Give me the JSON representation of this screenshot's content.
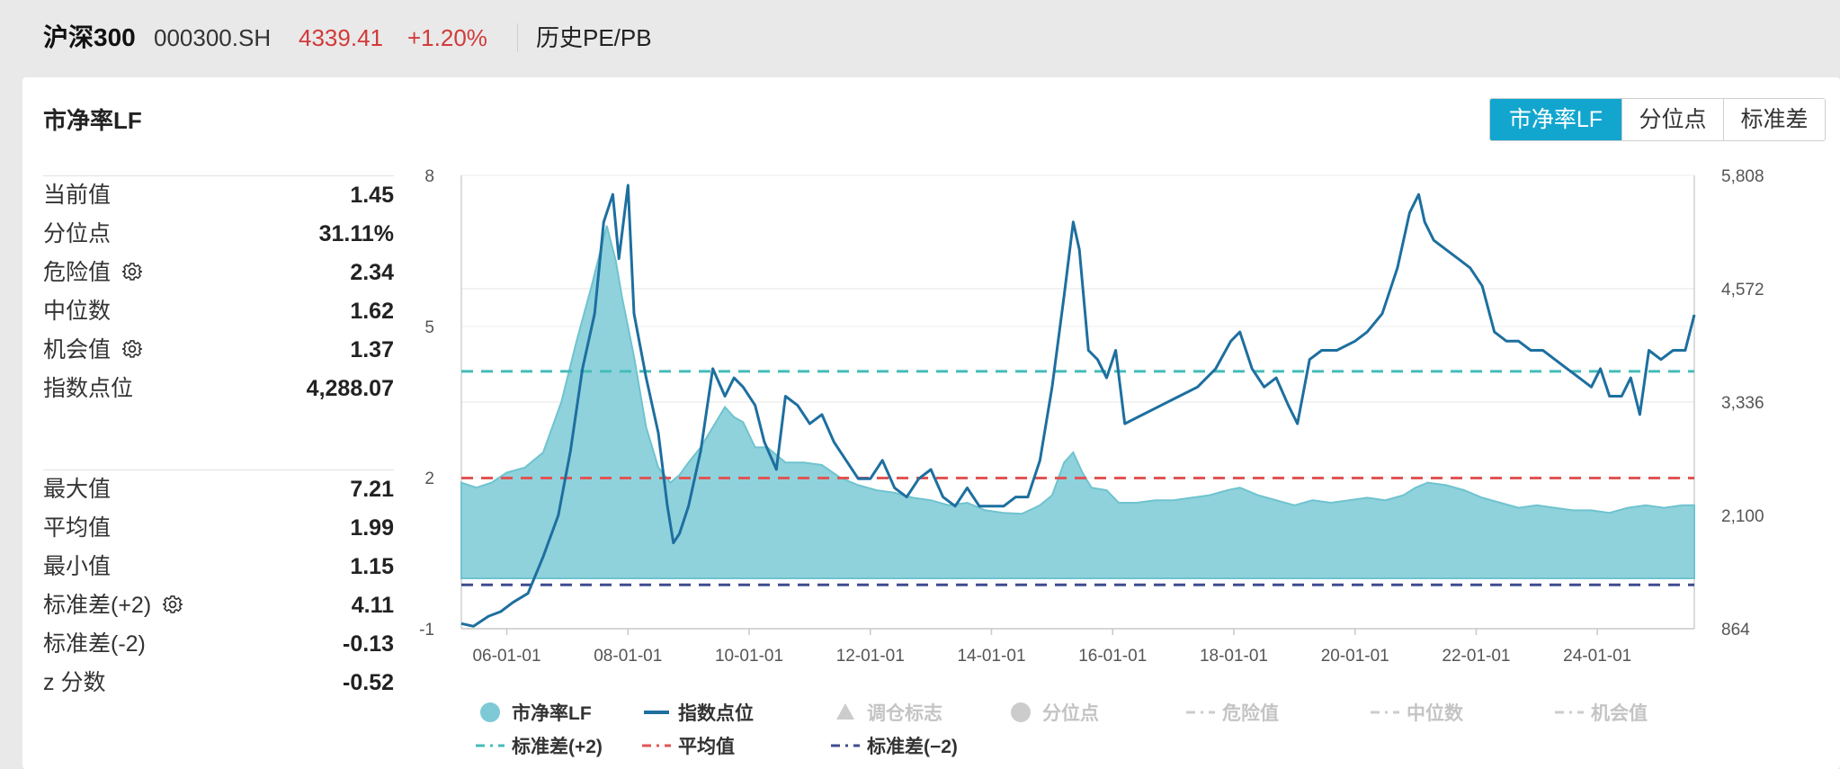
{
  "header": {
    "name": "沪深300",
    "code": "000300.SH",
    "price": "4339.41",
    "change": "+1.20%",
    "tab": "历史PE/PB"
  },
  "panel": {
    "title": "市净率LF",
    "segments": [
      {
        "label": "市净率LF",
        "active": true
      },
      {
        "label": "分位点",
        "active": false
      },
      {
        "label": "标准差",
        "active": false
      }
    ],
    "accent": "#12a6cf"
  },
  "stats_top": [
    {
      "label": "当前值",
      "value": "1.45",
      "gear": false
    },
    {
      "label": "分位点",
      "value": "31.11%",
      "gear": false
    },
    {
      "label": "危险值",
      "value": "2.34",
      "gear": true
    },
    {
      "label": "中位数",
      "value": "1.62",
      "gear": false
    },
    {
      "label": "机会值",
      "value": "1.37",
      "gear": true
    },
    {
      "label": "指数点位",
      "value": "4,288.07",
      "gear": false
    }
  ],
  "stats_bottom": [
    {
      "label": "最大值",
      "value": "7.21",
      "gear": false
    },
    {
      "label": "平均值",
      "value": "1.99",
      "gear": false
    },
    {
      "label": "最小值",
      "value": "1.15",
      "gear": false
    },
    {
      "label": "标准差(+2)",
      "value": "4.11",
      "gear": true
    },
    {
      "label": "标准差(-2)",
      "value": "-0.13",
      "gear": false
    },
    {
      "label": "z 分数",
      "value": "-0.52",
      "gear": false
    }
  ],
  "chart_data": {
    "type": "area",
    "x_ticks": [
      "06-01-01",
      "08-01-01",
      "10-01-01",
      "12-01-01",
      "14-01-01",
      "16-01-01",
      "18-01-01",
      "20-01-01",
      "22-01-01",
      "24-01-01"
    ],
    "xlim": [
      2005.25,
      2025.6
    ],
    "y_left_ticks": [
      "-1",
      "2",
      "5",
      "8"
    ],
    "ylim_left": [
      -1,
      8
    ],
    "y_right_ticks": [
      "864",
      "2,100",
      "3,336",
      "4,572",
      "5,808"
    ],
    "ylim_right": [
      864,
      5808
    ],
    "series": [
      {
        "name": "市净率LF",
        "kind": "area",
        "color": "#8fd2dc",
        "x": [
          2005.25,
          2005.5,
          2005.75,
          2006.0,
          2006.3,
          2006.6,
          2006.9,
          2007.15,
          2007.4,
          2007.65,
          2007.8,
          2007.9,
          2008.1,
          2008.3,
          2008.5,
          2008.7,
          2008.85,
          2009.0,
          2009.2,
          2009.45,
          2009.6,
          2009.75,
          2009.9,
          2010.1,
          2010.3,
          2010.6,
          2010.9,
          2011.2,
          2011.5,
          2011.8,
          2012.1,
          2012.4,
          2012.7,
          2013.0,
          2013.3,
          2013.6,
          2013.9,
          2014.2,
          2014.5,
          2014.8,
          2015.0,
          2015.2,
          2015.35,
          2015.5,
          2015.65,
          2015.9,
          2016.1,
          2016.4,
          2016.7,
          2017.0,
          2017.3,
          2017.6,
          2017.9,
          2018.1,
          2018.4,
          2018.7,
          2019.0,
          2019.3,
          2019.6,
          2019.9,
          2020.2,
          2020.5,
          2020.8,
          2021.0,
          2021.2,
          2021.5,
          2021.8,
          2022.1,
          2022.4,
          2022.7,
          2023.0,
          2023.3,
          2023.6,
          2023.9,
          2024.2,
          2024.5,
          2024.8,
          2025.1,
          2025.4,
          2025.6
        ],
        "values": [
          1.9,
          1.8,
          1.9,
          2.1,
          2.2,
          2.5,
          3.5,
          4.7,
          5.8,
          7.0,
          6.3,
          5.6,
          4.4,
          3.0,
          2.2,
          1.9,
          2.05,
          2.3,
          2.6,
          3.1,
          3.4,
          3.2,
          3.1,
          2.6,
          2.6,
          2.3,
          2.3,
          2.25,
          2.0,
          1.85,
          1.75,
          1.7,
          1.6,
          1.55,
          1.45,
          1.5,
          1.35,
          1.3,
          1.28,
          1.45,
          1.65,
          2.3,
          2.5,
          2.1,
          1.8,
          1.75,
          1.5,
          1.5,
          1.55,
          1.55,
          1.6,
          1.65,
          1.75,
          1.8,
          1.65,
          1.55,
          1.45,
          1.55,
          1.5,
          1.55,
          1.6,
          1.55,
          1.65,
          1.8,
          1.9,
          1.85,
          1.75,
          1.6,
          1.5,
          1.4,
          1.45,
          1.4,
          1.35,
          1.35,
          1.3,
          1.4,
          1.45,
          1.4,
          1.45,
          1.45
        ]
      },
      {
        "name": "指数点位",
        "kind": "line",
        "color": "#1d6f9f",
        "x": [
          2005.25,
          2005.45,
          2005.7,
          2005.9,
          2006.1,
          2006.35,
          2006.6,
          2006.85,
          2007.05,
          2007.25,
          2007.45,
          2007.6,
          2007.75,
          2007.85,
          2008.0,
          2008.1,
          2008.3,
          2008.5,
          2008.65,
          2008.75,
          2008.85,
          2009.0,
          2009.2,
          2009.4,
          2009.6,
          2009.75,
          2009.9,
          2010.1,
          2010.25,
          2010.45,
          2010.6,
          2010.8,
          2011.0,
          2011.2,
          2011.4,
          2011.6,
          2011.8,
          2012.0,
          2012.2,
          2012.4,
          2012.6,
          2012.8,
          2013.0,
          2013.2,
          2013.4,
          2013.6,
          2013.8,
          2014.0,
          2014.2,
          2014.4,
          2014.6,
          2014.8,
          2015.0,
          2015.2,
          2015.35,
          2015.45,
          2015.6,
          2015.75,
          2015.9,
          2016.05,
          2016.2,
          2016.5,
          2016.8,
          2017.1,
          2017.4,
          2017.7,
          2017.95,
          2018.1,
          2018.3,
          2018.5,
          2018.7,
          2018.9,
          2019.05,
          2019.25,
          2019.45,
          2019.7,
          2020.0,
          2020.2,
          2020.45,
          2020.7,
          2020.9,
          2021.05,
          2021.15,
          2021.3,
          2021.5,
          2021.7,
          2021.9,
          2022.1,
          2022.3,
          2022.5,
          2022.7,
          2022.9,
          2023.1,
          2023.3,
          2023.5,
          2023.7,
          2023.9,
          2024.05,
          2024.2,
          2024.4,
          2024.55,
          2024.7,
          2024.85,
          2025.05,
          2025.25,
          2025.45,
          2025.6
        ],
        "values": [
          920,
          890,
          1000,
          1050,
          1150,
          1250,
          1650,
          2100,
          2800,
          3700,
          4300,
          5300,
          5600,
          4900,
          5700,
          4300,
          3600,
          3000,
          2200,
          1800,
          1900,
          2200,
          2800,
          3700,
          3400,
          3600,
          3500,
          3300,
          2900,
          2600,
          3400,
          3300,
          3100,
          3200,
          2900,
          2700,
          2500,
          2500,
          2700,
          2400,
          2300,
          2500,
          2600,
          2300,
          2200,
          2400,
          2200,
          2200,
          2200,
          2300,
          2300,
          2700,
          3500,
          4500,
          5300,
          5000,
          3900,
          3800,
          3600,
          3900,
          3100,
          3200,
          3300,
          3400,
          3500,
          3700,
          4000,
          4100,
          3700,
          3500,
          3600,
          3300,
          3100,
          3800,
          3900,
          3900,
          4000,
          4100,
          4300,
          4800,
          5400,
          5600,
          5300,
          5100,
          5000,
          4900,
          4800,
          4600,
          4100,
          4000,
          4000,
          3900,
          3900,
          3800,
          3700,
          3600,
          3500,
          3700,
          3400,
          3400,
          3600,
          3200,
          3900,
          3800,
          3900,
          3900,
          4288
        ]
      },
      {
        "name": "标准差(+2)",
        "kind": "hline",
        "color": "#45bcb8",
        "value": 4.11
      },
      {
        "name": "平均值",
        "kind": "hline",
        "color": "#e05555",
        "value": 1.99
      },
      {
        "name": "标准差(−2)",
        "kind": "hline",
        "color": "#3f4d8f",
        "value": -0.13
      }
    ],
    "legend": [
      {
        "label": "市净率LF",
        "marker": "dot",
        "color": "#7dcad6",
        "active": true
      },
      {
        "label": "指数点位",
        "marker": "line",
        "color": "#1d6f9f",
        "active": true
      },
      {
        "label": "调仓标志",
        "marker": "triangle",
        "color": "#cccccc",
        "active": false
      },
      {
        "label": "分位点",
        "marker": "dot",
        "color": "#cccccc",
        "active": false
      },
      {
        "label": "危险值",
        "marker": "dashdot",
        "color": "#cccccc",
        "active": false
      },
      {
        "label": "中位数",
        "marker": "dashdot",
        "color": "#cccccc",
        "active": false
      },
      {
        "label": "机会值",
        "marker": "dashdot",
        "color": "#cccccc",
        "active": false
      },
      {
        "label": "标准差(+2)",
        "marker": "dashdot",
        "color": "#45bcb8",
        "active": true
      },
      {
        "label": "平均值",
        "marker": "dashdot",
        "color": "#e05555",
        "active": true
      },
      {
        "label": "标准差(−2)",
        "marker": "dashdot",
        "color": "#3f4d8f",
        "active": true
      }
    ]
  }
}
